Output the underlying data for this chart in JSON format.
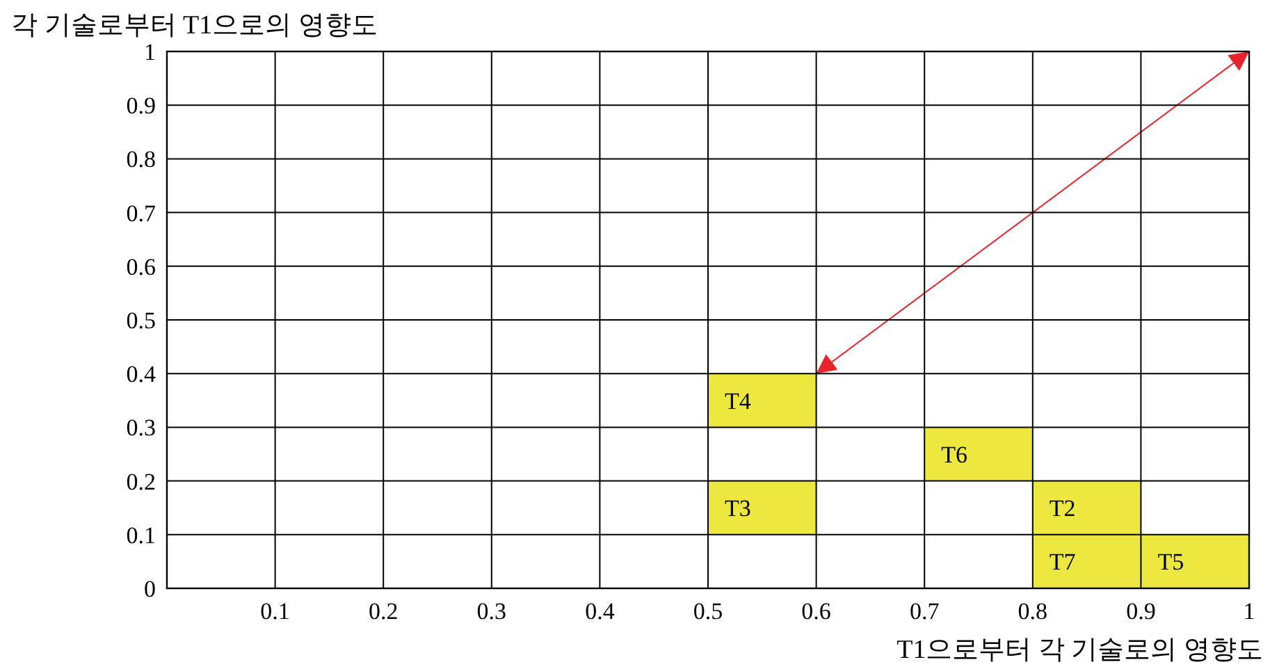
{
  "chart_data": {
    "type": "bar",
    "xlabel": "T1으로부터 각 기술로의 영향도",
    "ylabel": "각 기술로부터 T1으로의 영향도",
    "xlim": [
      0,
      1
    ],
    "ylim": [
      0,
      1
    ],
    "xticks": [
      0.1,
      0.2,
      0.3,
      0.4,
      0.5,
      0.6,
      0.7,
      0.8,
      0.9,
      1
    ],
    "yticks": [
      0,
      0.1,
      0.2,
      0.3,
      0.4,
      0.5,
      0.6,
      0.7,
      0.8,
      0.9,
      1
    ],
    "grid": true,
    "series": [
      {
        "color": "#ede840",
        "x": [
          0.55,
          0.75,
          0.85,
          0.95
        ],
        "values": [
          0.1,
          0.1,
          0.1,
          0.1
        ],
        "base": [
          0.1,
          0.2,
          0,
          0
        ]
      },
      {
        "color": "#ede840",
        "x": [
          0.55,
          0.85
        ],
        "values": [
          0.1,
          0.1
        ],
        "base": [
          0.3,
          0.1
        ]
      },
      {
        "type": "line",
        "color": "#e8242a",
        "x": [
          0.6,
          1
        ],
        "values": [
          0.4,
          1
        ]
      }
    ],
    "annotations": [
      {
        "text": "T4",
        "x": 0.55,
        "y": 0.4
      },
      {
        "text": "T3",
        "x": 0.55,
        "y": 0.2
      },
      {
        "text": "T6",
        "x": 0.75,
        "y": 0.3
      },
      {
        "text": "T2",
        "x": 0.85,
        "y": 0.2
      },
      {
        "text": "T7",
        "x": 0.85,
        "y": 0.1
      },
      {
        "text": "T5",
        "x": 0.95,
        "y": 0.1
      }
    ]
  }
}
